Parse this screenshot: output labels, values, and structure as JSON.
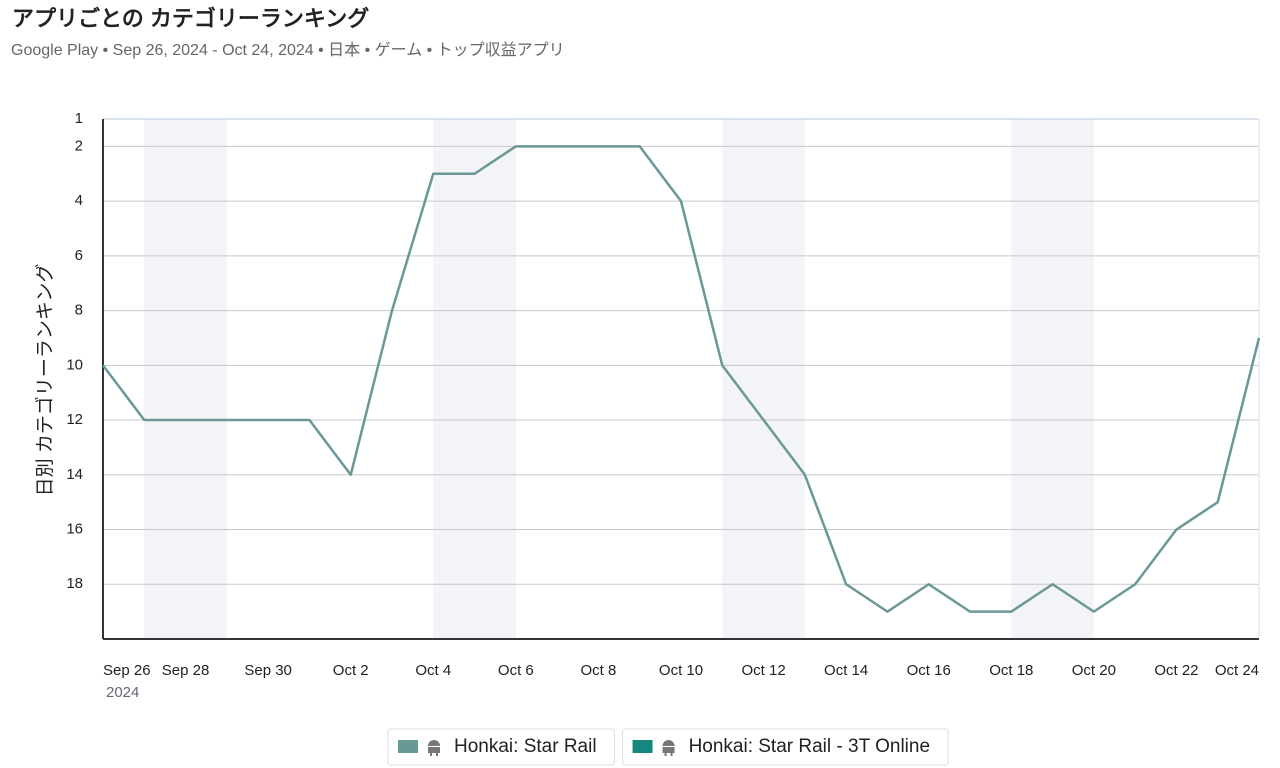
{
  "chart_data": {
    "type": "line",
    "title": "アプリごとの カテゴリーランキング",
    "subtitle": "Google Play • Sep 26, 2024 - Oct 24, 2024 • 日本 • ゲーム • トップ収益アプリ",
    "y_label": "日別 カテゴリーランキング",
    "x_year_label": "2024",
    "x": [
      "2024-09-26",
      "2024-09-27",
      "2024-09-28",
      "2024-09-29",
      "2024-09-30",
      "2024-10-01",
      "2024-10-02",
      "2024-10-03",
      "2024-10-04",
      "2024-10-05",
      "2024-10-06",
      "2024-10-07",
      "2024-10-08",
      "2024-10-09",
      "2024-10-10",
      "2024-10-11",
      "2024-10-12",
      "2024-10-13",
      "2024-10-14",
      "2024-10-15",
      "2024-10-16",
      "2024-10-17",
      "2024-10-18",
      "2024-10-19",
      "2024-10-20",
      "2024-10-21",
      "2024-10-22",
      "2024-10-23",
      "2024-10-24"
    ],
    "series": [
      {
        "name": "Honkai: Star Rail",
        "color": "#6a9896",
        "values": [
          10,
          12,
          12,
          12,
          12,
          12,
          14,
          8,
          3,
          3,
          2,
          2,
          2,
          2,
          4,
          10,
          12,
          14,
          18,
          19,
          18,
          19,
          19,
          18,
          19,
          18,
          16,
          15,
          9
        ]
      },
      {
        "name": "Honkai: Star Rail - 3T Online",
        "color": "#15877f",
        "values": [
          null,
          null,
          null,
          null,
          null,
          null,
          null,
          null,
          null,
          null,
          null,
          null,
          null,
          null,
          null,
          null,
          null,
          null,
          null,
          null,
          null,
          null,
          null,
          null,
          null,
          null,
          null,
          null,
          null
        ]
      }
    ],
    "xlim": [
      "2024-09-26",
      "2024-10-24"
    ],
    "xticks": [
      {
        "value": "2024-09-26",
        "label": "Sep 26"
      },
      {
        "value": "2024-09-28",
        "label": "Sep 28"
      },
      {
        "value": "2024-09-30",
        "label": "Sep 30"
      },
      {
        "value": "2024-10-02",
        "label": "Oct 2"
      },
      {
        "value": "2024-10-04",
        "label": "Oct 4"
      },
      {
        "value": "2024-10-06",
        "label": "Oct 6"
      },
      {
        "value": "2024-10-08",
        "label": "Oct 8"
      },
      {
        "value": "2024-10-10",
        "label": "Oct 10"
      },
      {
        "value": "2024-10-12",
        "label": "Oct 12"
      },
      {
        "value": "2024-10-14",
        "label": "Oct 14"
      },
      {
        "value": "2024-10-16",
        "label": "Oct 16"
      },
      {
        "value": "2024-10-18",
        "label": "Oct 18"
      },
      {
        "value": "2024-10-20",
        "label": "Oct 20"
      },
      {
        "value": "2024-10-22",
        "label": "Oct 22"
      },
      {
        "value": "2024-10-24",
        "label": "Oct 24"
      }
    ],
    "ylim": [
      1,
      20
    ],
    "y_inverted": true,
    "yticks": [
      1,
      2,
      4,
      6,
      8,
      10,
      12,
      14,
      16,
      18
    ],
    "grid": true,
    "shaded_ranges": [
      [
        "2024-09-27",
        "2024-09-29"
      ],
      [
        "2024-10-04",
        "2024-10-06"
      ],
      [
        "2024-10-11",
        "2024-10-13"
      ],
      [
        "2024-10-18",
        "2024-10-20"
      ]
    ],
    "legend": "bottom"
  }
}
